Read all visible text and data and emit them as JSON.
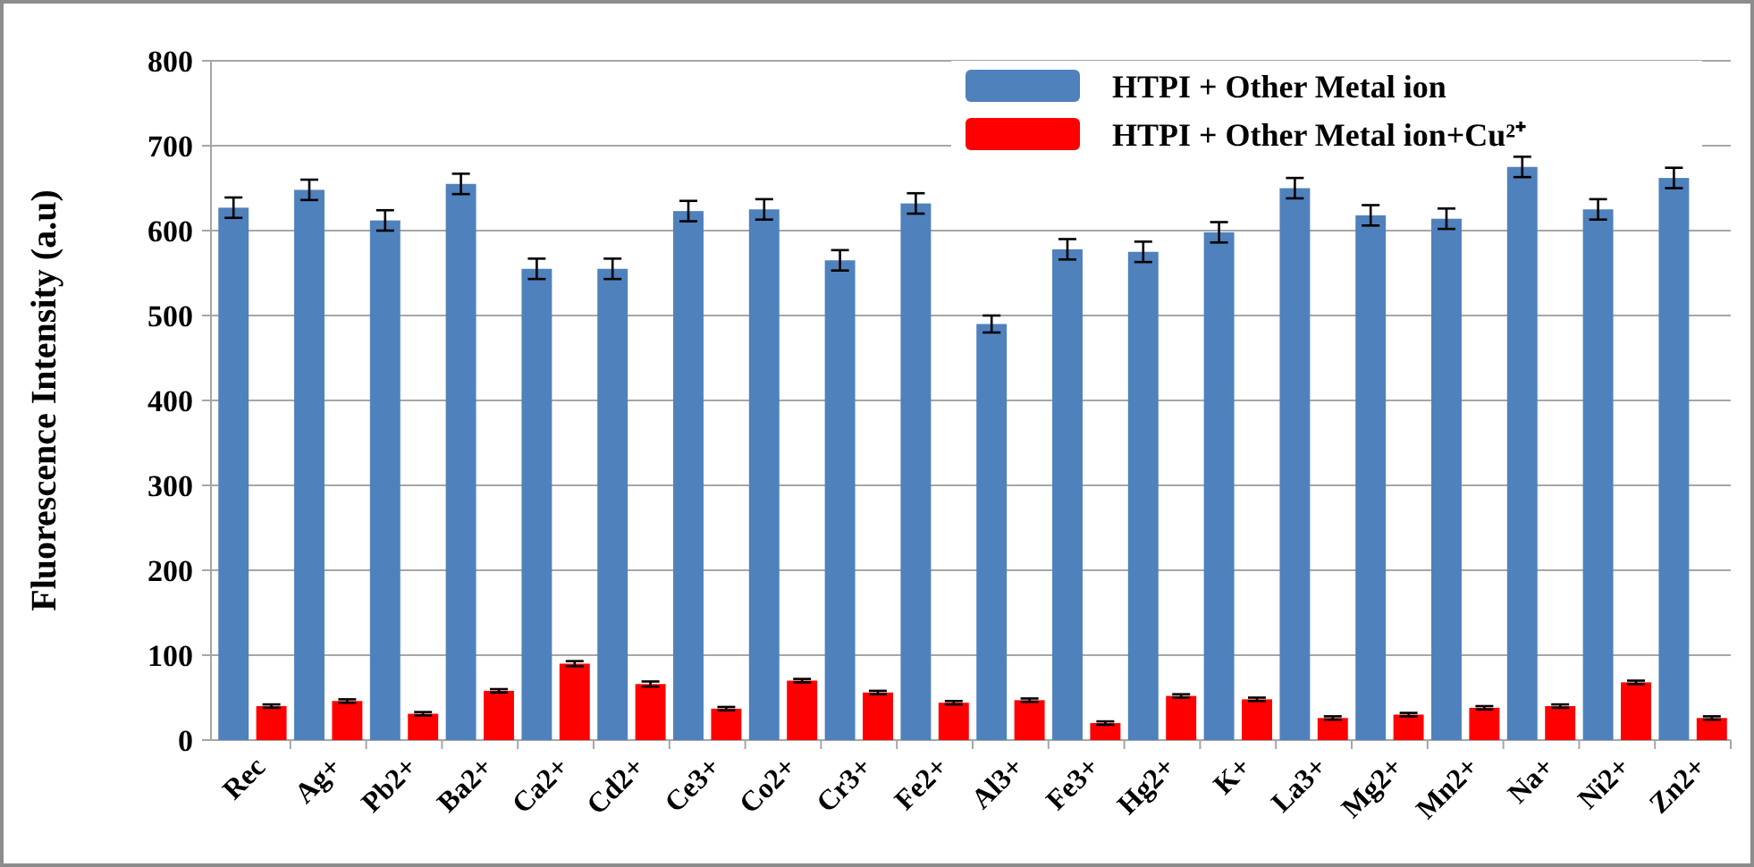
{
  "chart_data": {
    "type": "bar",
    "ylabel": "Fluorescence Intensity (a.u)",
    "categories": [
      "Rec",
      "Ag+",
      "Pb2+",
      "Ba2+",
      "Ca2+",
      "Cd2+",
      "Ce3+",
      "Co2+",
      "Cr3+",
      "Fe2+",
      "Al3+",
      "Fe3+",
      "Hg2+",
      "K+",
      "La3+",
      "Mg2+",
      "Mn2+",
      "Na+",
      "Ni2+",
      "Zn2+"
    ],
    "series": [
      {
        "name": "HTPI + Other Metal ion",
        "color": "#4f81bd",
        "values": [
          627,
          648,
          612,
          655,
          555,
          555,
          623,
          625,
          565,
          632,
          490,
          578,
          575,
          598,
          650,
          618,
          614,
          675,
          625,
          662
        ],
        "errors": [
          12,
          12,
          12,
          12,
          12,
          12,
          12,
          12,
          12,
          12,
          10,
          12,
          12,
          12,
          12,
          12,
          12,
          12,
          12,
          12
        ]
      },
      {
        "name": "HTPI + Other Metal ion+Cu²⁺",
        "color": "#ff0000",
        "values": [
          40,
          46,
          31,
          58,
          90,
          66,
          37,
          70,
          56,
          44,
          47,
          20,
          52,
          48,
          26,
          30,
          38,
          40,
          68,
          26
        ],
        "errors": [
          2,
          2,
          2,
          2,
          3,
          3,
          2,
          2,
          2,
          2,
          2,
          2,
          2,
          2,
          2,
          2,
          2,
          2,
          2,
          2
        ]
      }
    ],
    "ylim": [
      0,
      800
    ],
    "yticks": [
      0,
      100,
      200,
      300,
      400,
      500,
      600,
      700,
      800
    ],
    "grid": "y",
    "legend": "top right"
  }
}
